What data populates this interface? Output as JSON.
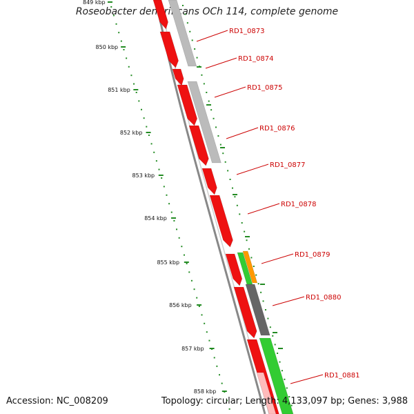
{
  "title": "Roseobacter denitrificans OCh 114, complete genome",
  "footer": {
    "accession": "Accession: NC_008209",
    "summary": "Topology: circular; Length: 4,133,097 bp; Genes: 3,988"
  },
  "colors": {
    "forward_cds": "#ee1111",
    "reverse_cds": "#bbbbbb",
    "rna_gene": "#33cc33",
    "other_feature": "#ff9900",
    "pseudo_gene": "#666666",
    "backbone": "#888888",
    "tick": "#228b22",
    "label": "#cc0000"
  },
  "axis": {
    "unit": "kbp",
    "labels": [
      "849 kbp",
      "850 kbp",
      "851 kbp",
      "852 kbp",
      "853 kbp",
      "854 kbp",
      "855 kbp",
      "856 kbp",
      "857 kbp",
      "858 kbp"
    ]
  },
  "genes": [
    {
      "label": "RD1_0873"
    },
    {
      "label": "RD1_0874"
    },
    {
      "label": "RD1_0875"
    },
    {
      "label": "RD1_0876"
    },
    {
      "label": "RD1_0877"
    },
    {
      "label": "RD1_0878"
    },
    {
      "label": "RD1_0879"
    },
    {
      "label": "RD1_0880"
    },
    {
      "label": "RD1_0881"
    }
  ]
}
